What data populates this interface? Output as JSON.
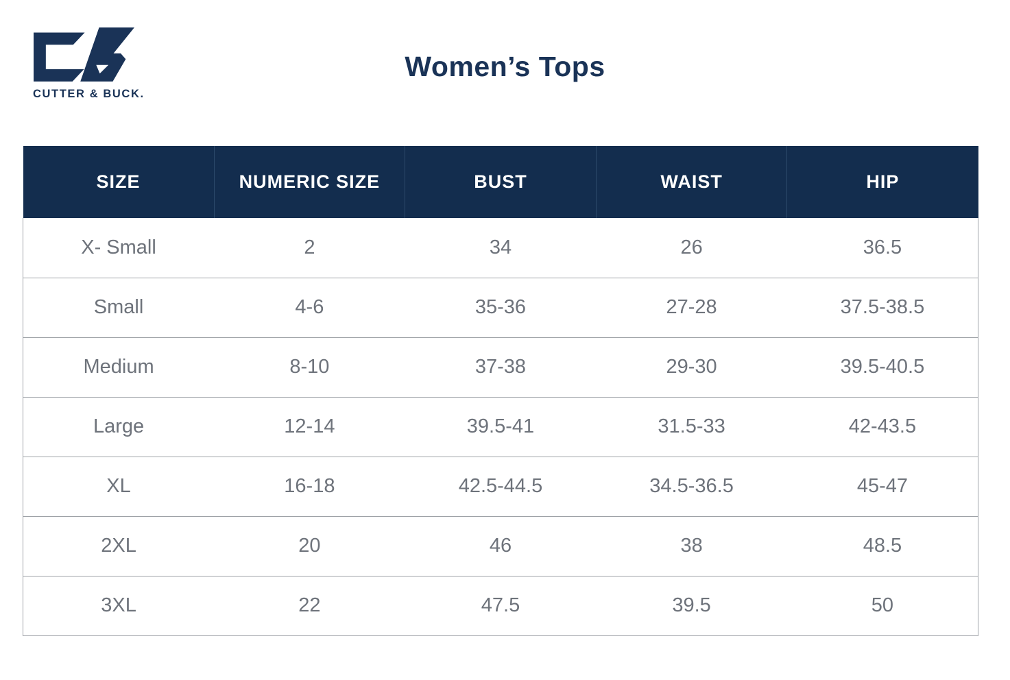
{
  "brand": {
    "name": "CUTTER & BUCK.",
    "logo_icon": "cb-monogram-icon"
  },
  "title": "Women’s Tops",
  "colors": {
    "navy_header": "#132D4E",
    "brand_navy": "#1A3357",
    "body_text": "#6E737B",
    "grid_line": "#9EA2A7",
    "header_divider": "#2C4A6B"
  },
  "chart_data": {
    "type": "table",
    "title": "Women’s Tops",
    "columns": [
      "SIZE",
      "NUMERIC SIZE",
      "BUST",
      "WAIST",
      "HIP"
    ],
    "rows": [
      [
        "X- Small",
        "2",
        "34",
        "26",
        "36.5"
      ],
      [
        "Small",
        "4-6",
        "35-36",
        "27-28",
        "37.5-38.5"
      ],
      [
        "Medium",
        "8-10",
        "37-38",
        "29-30",
        "39.5-40.5"
      ],
      [
        "Large",
        "12-14",
        "39.5-41",
        "31.5-33",
        "42-43.5"
      ],
      [
        "XL",
        "16-18",
        "42.5-44.5",
        "34.5-36.5",
        "45-47"
      ],
      [
        "2XL",
        "20",
        "46",
        "38",
        "48.5"
      ],
      [
        "3XL",
        "22",
        "47.5",
        "39.5",
        "50"
      ]
    ]
  }
}
